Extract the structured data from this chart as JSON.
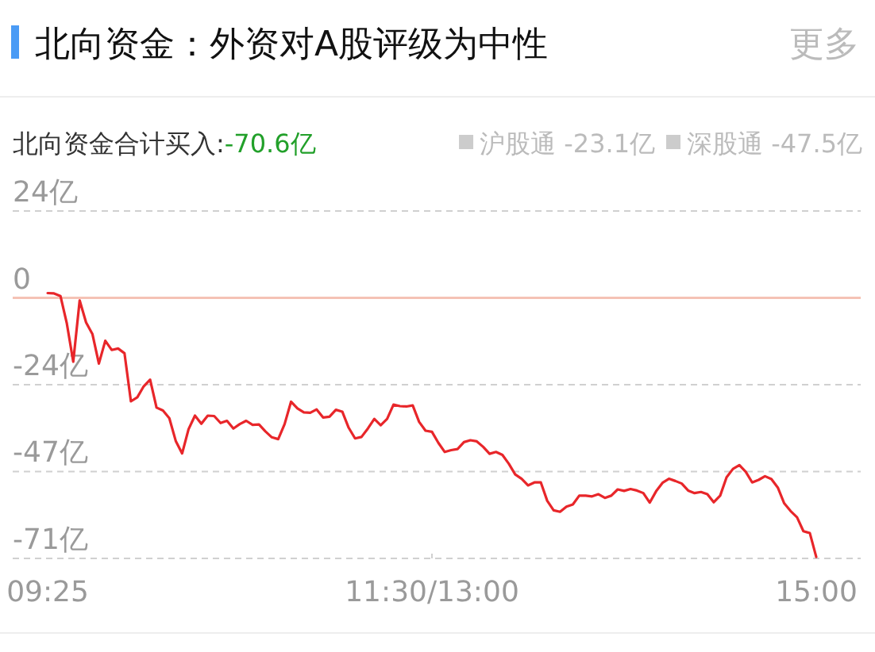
{
  "chart_data": {
    "type": "line",
    "title": "北向资金：外资对A股评级为中性",
    "annotations": [
      "更多",
      "北向资金合计买入:",
      "-70.6亿",
      "沪股通 -23.1亿",
      "深股通 -47.5亿"
    ],
    "categories": [
      "09:25",
      null,
      null,
      null,
      null,
      null,
      null,
      null,
      null,
      null,
      null,
      null,
      null,
      null,
      null,
      null,
      null,
      null,
      null,
      null,
      null,
      null,
      null,
      null,
      null,
      null,
      null,
      null,
      null,
      null,
      null,
      null,
      null,
      null,
      null,
      null,
      null,
      null,
      null,
      null,
      null,
      null,
      null,
      null,
      null,
      null,
      null,
      null,
      null,
      null,
      null,
      null,
      null,
      null,
      null,
      null,
      null,
      null,
      null,
      null,
      "11:30/13:00",
      null,
      null,
      null,
      null,
      null,
      null,
      null,
      null,
      null,
      null,
      null,
      null,
      null,
      null,
      null,
      null,
      null,
      null,
      null,
      null,
      null,
      null,
      null,
      null,
      null,
      null,
      null,
      null,
      null,
      null,
      null,
      null,
      null,
      null,
      null,
      null,
      null,
      null,
      null,
      null,
      null,
      null,
      null,
      null,
      null,
      null,
      null,
      null,
      null,
      null,
      null,
      null,
      null,
      null,
      null,
      null,
      null,
      null,
      null,
      "15:00"
    ],
    "series": [
      {
        "color": "#e8262a",
        "values": [
          1.3,
          1.2,
          0.5,
          -7,
          -17.4,
          -0.7,
          -6.7,
          -9.9,
          -17.9,
          -11.7,
          -14.2,
          -13.8,
          -15.1,
          -28.2,
          -27.1,
          -24.1,
          -22.3,
          -29.9,
          -30.7,
          -32.8,
          -39.0,
          -42.4,
          -35.8,
          -32.1,
          -34.3,
          -32.1,
          -32.2,
          -34.1,
          -33.5,
          -35.6,
          -34.4,
          -33.5,
          -34.6,
          -34.5,
          -36.4,
          -38.0,
          -38.5,
          -34.4,
          -28.3,
          -30.1,
          -31.2,
          -31.3,
          -30.4,
          -32.6,
          -32.4,
          -30.5,
          -31.0,
          -35.4,
          -38.3,
          -37.9,
          -35.6,
          -33.0,
          -34.7,
          -33.0,
          -29.1,
          -29.5,
          -29.6,
          -29.3,
          -33.8,
          -36.2,
          -36.5,
          -39.5,
          -42.0,
          -41.5,
          -41.2,
          -39.3,
          -38.8,
          -39.1,
          -40.6,
          -42.5,
          -42.0,
          -42.8,
          -45.2,
          -48.1,
          -49.3,
          -51.1,
          -50.3,
          -50.3,
          -55.3,
          -57.9,
          -58.3,
          -56.9,
          -56.3,
          -53.9,
          -53.9,
          -54.1,
          -53.5,
          -54.5,
          -53.9,
          -52.2,
          -52.6,
          -52.1,
          -52.5,
          -53.2,
          -55.8,
          -52.7,
          -50.4,
          -49.3,
          -49.9,
          -50.6,
          -52.5,
          -53.2,
          -52.9,
          -53.5,
          -55.7,
          -53.9,
          -48.9,
          -46.6,
          -45.6,
          -47.4,
          -50.3,
          -49.6,
          -48.6,
          -49.4,
          -51.7,
          -56.0,
          -58.1,
          -59.8,
          -63.6,
          -64.1,
          -70.6
        ]
      }
    ],
    "ylim": [
      -71,
      23.67
    ],
    "yticks": [
      {
        "value": 23.67,
        "label": "24亿"
      },
      {
        "value": 0,
        "label": "0"
      },
      {
        "value": -23.67,
        "label": "-24亿"
      },
      {
        "value": -47.33,
        "label": "-47亿"
      },
      {
        "value": -71,
        "label": "-71亿"
      }
    ],
    "ref_lines": [
      {
        "axis": "y",
        "value": 0,
        "color": "#f5c2b5"
      }
    ],
    "grid": "y"
  }
}
